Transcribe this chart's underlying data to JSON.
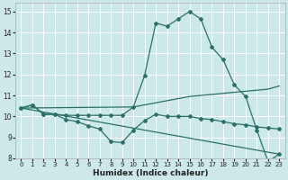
{
  "xlabel": "Humidex (Indice chaleur)",
  "bg_color": "#cce8e8",
  "grid_color": "#ffffff",
  "line_color": "#2a7068",
  "xlim": [
    -0.5,
    23.5
  ],
  "ylim": [
    8,
    15.4
  ],
  "xticks": [
    0,
    1,
    2,
    3,
    4,
    5,
    6,
    7,
    8,
    9,
    10,
    11,
    12,
    13,
    14,
    15,
    16,
    17,
    18,
    19,
    20,
    21,
    22,
    23
  ],
  "yticks": [
    8,
    9,
    10,
    11,
    12,
    13,
    14,
    15
  ],
  "line1_x": [
    0,
    1,
    2,
    3,
    4,
    5,
    6,
    7,
    8,
    9,
    10,
    11,
    12,
    13,
    14,
    15,
    16,
    17,
    18,
    19,
    20,
    21,
    22,
    23
  ],
  "line1_y": [
    10.4,
    10.55,
    10.1,
    10.1,
    9.85,
    9.75,
    9.55,
    9.4,
    8.8,
    8.75,
    9.35,
    9.8,
    10.1,
    10.0,
    10.0,
    10.0,
    9.9,
    9.85,
    9.75,
    9.65,
    9.6,
    9.5,
    9.45,
    9.4
  ],
  "line2_x": [
    0,
    1,
    2,
    3,
    4,
    5,
    6,
    7,
    8,
    9,
    10,
    11,
    12,
    13,
    14,
    15,
    16,
    17,
    18,
    19,
    20,
    21,
    22,
    23
  ],
  "line2_y": [
    10.4,
    10.55,
    10.1,
    10.1,
    10.05,
    10.05,
    10.05,
    10.05,
    10.05,
    10.05,
    10.45,
    11.95,
    14.45,
    14.3,
    14.65,
    15.0,
    14.65,
    13.3,
    12.7,
    11.5,
    10.95,
    9.35,
    7.85,
    8.2
  ],
  "line3_x": [
    0,
    10,
    11,
    12,
    13,
    14,
    15,
    16,
    17,
    18,
    19,
    20,
    21,
    22,
    23
  ],
  "line3_y": [
    10.4,
    10.45,
    10.55,
    10.65,
    10.75,
    10.85,
    10.95,
    11.0,
    11.05,
    11.1,
    11.15,
    11.2,
    11.25,
    11.3,
    11.45
  ],
  "line4_x": [
    0,
    23
  ],
  "line4_y": [
    10.4,
    8.2
  ]
}
